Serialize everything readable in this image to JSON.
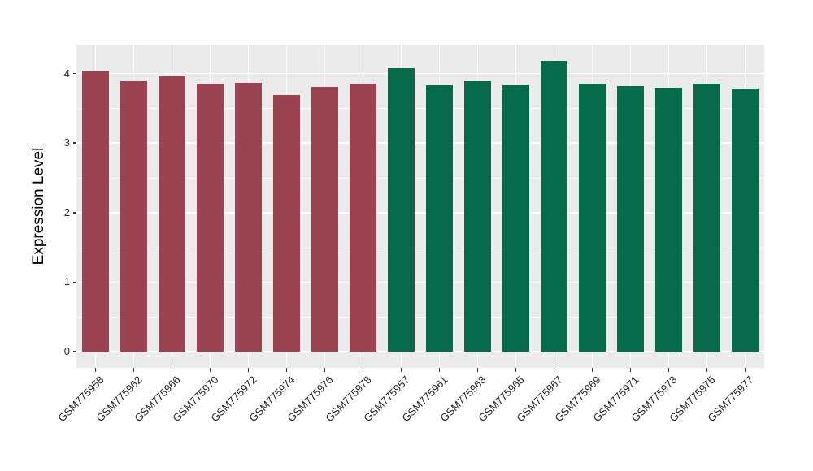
{
  "figure": {
    "background_color": "#FFFFFF",
    "panel_color": "#EBEBEB",
    "grid_color": "#FFFFFF",
    "axis_text_color": "#262626",
    "axis_title_color": "#000000"
  },
  "chart_data": {
    "type": "bar",
    "title": "",
    "xlabel": "",
    "ylabel": "Expression Level",
    "ylim": [
      0,
      4.42
    ],
    "yticks": [
      "0",
      "1",
      "2",
      "3",
      "4"
    ],
    "minor_gridlines": [
      0.5,
      1.5,
      2.5,
      3.5
    ],
    "grid": "white major+minor horizontal lines, white vertical line at each category center, on gray panel",
    "legend_position": "none",
    "categories": [
      "GSM775958",
      "GSM775962",
      "GSM775966",
      "GSM775970",
      "GSM775972",
      "GSM775974",
      "GSM775976",
      "GSM775978",
      "GSM775957",
      "GSM775961",
      "GSM775963",
      "GSM775965",
      "GSM775967",
      "GSM775969",
      "GSM775971",
      "GSM775973",
      "GSM775975",
      "GSM775977"
    ],
    "values": [
      4.03,
      3.89,
      3.96,
      3.86,
      3.87,
      3.69,
      3.81,
      3.86,
      4.08,
      3.83,
      3.89,
      3.83,
      4.18,
      3.85,
      3.82,
      3.8,
      3.86,
      3.79
    ],
    "bar_colors": [
      "#9B4351",
      "#9B4351",
      "#9B4351",
      "#9B4351",
      "#9B4351",
      "#9B4351",
      "#9B4351",
      "#9B4351",
      "#066A4B",
      "#066A4B",
      "#066A4B",
      "#066A4B",
      "#066A4B",
      "#066A4B",
      "#066A4B",
      "#066A4B",
      "#066A4B",
      "#066A4B"
    ],
    "group_colors": {
      "maroon_group": "#9B4351",
      "green_group": "#066A4B"
    }
  }
}
